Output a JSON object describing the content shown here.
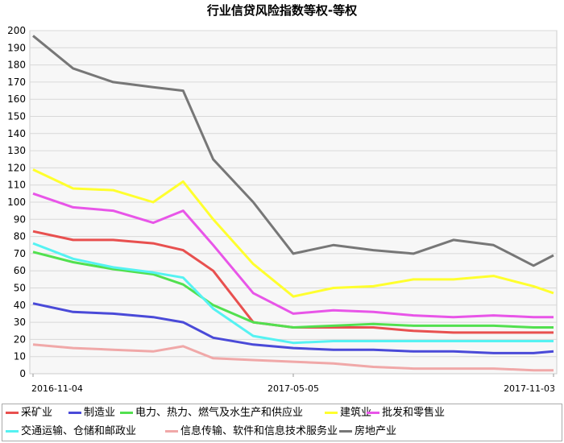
{
  "chart_data": {
    "type": "line",
    "title": "行业信贷风险指数等权-等权",
    "x_tick_labels": [
      "2016-11-04",
      "2017-05-05",
      "2017-11-03"
    ],
    "x_range": [
      "2016-11-04",
      "2017-11-03"
    ],
    "ylim": [
      0,
      200
    ],
    "y_ticks": [
      "0",
      "10",
      "20",
      "30",
      "40",
      "50",
      "60",
      "70",
      "80",
      "90",
      "100",
      "110",
      "120",
      "130",
      "140",
      "150",
      "160",
      "170",
      "180",
      "190",
      "200"
    ],
    "grid": "horizontal",
    "legend_position": "bottom",
    "x": [
      "2016-11-04",
      "2016-12-02",
      "2016-12-30",
      "2017-01-27",
      "2017-02-17",
      "2017-03-10",
      "2017-04-07",
      "2017-05-05",
      "2017-06-02",
      "2017-06-30",
      "2017-07-28",
      "2017-08-25",
      "2017-09-22",
      "2017-10-20",
      "2017-11-03"
    ],
    "series": [
      {
        "name": "采矿业",
        "color": "#e8504f",
        "values": [
          83,
          78,
          78,
          76,
          72,
          60,
          30,
          27,
          27,
          27,
          25,
          24,
          24,
          24,
          24
        ]
      },
      {
        "name": "制造业",
        "color": "#4a4ad8",
        "values": [
          41,
          36,
          35,
          33,
          30,
          21,
          17,
          15,
          14,
          14,
          13,
          13,
          12,
          12,
          13
        ]
      },
      {
        "name": "电力、热力、燃气及水生产和供应业",
        "color": "#52e04f",
        "values": [
          71,
          65,
          61,
          58,
          52,
          40,
          30,
          27,
          28,
          29,
          28,
          28,
          28,
          27,
          27
        ]
      },
      {
        "name": "建筑业",
        "color": "#ffff2e",
        "values": [
          119,
          108,
          107,
          100,
          112,
          90,
          64,
          45,
          50,
          51,
          55,
          55,
          57,
          51,
          47
        ]
      },
      {
        "name": "批发和零售业",
        "color": "#e855e8",
        "values": [
          105,
          97,
          95,
          88,
          95,
          75,
          47,
          35,
          37,
          36,
          34,
          33,
          34,
          33,
          33
        ]
      },
      {
        "name": "交通运输、仓储和邮政业",
        "color": "#55f2f2",
        "values": [
          76,
          67,
          62,
          59,
          56,
          38,
          22,
          18,
          19,
          19,
          19,
          19,
          19,
          19,
          19
        ]
      },
      {
        "name": "信息传输、软件和信息技术服务业",
        "color": "#f0a8a8",
        "values": [
          17,
          15,
          14,
          13,
          16,
          9,
          8,
          7,
          6,
          4,
          3,
          3,
          3,
          2,
          2
        ]
      },
      {
        "name": "房地产业",
        "color": "#777777",
        "values": [
          197,
          178,
          170,
          167,
          165,
          125,
          100,
          70,
          75,
          72,
          70,
          78,
          75,
          63,
          69
        ]
      }
    ]
  }
}
